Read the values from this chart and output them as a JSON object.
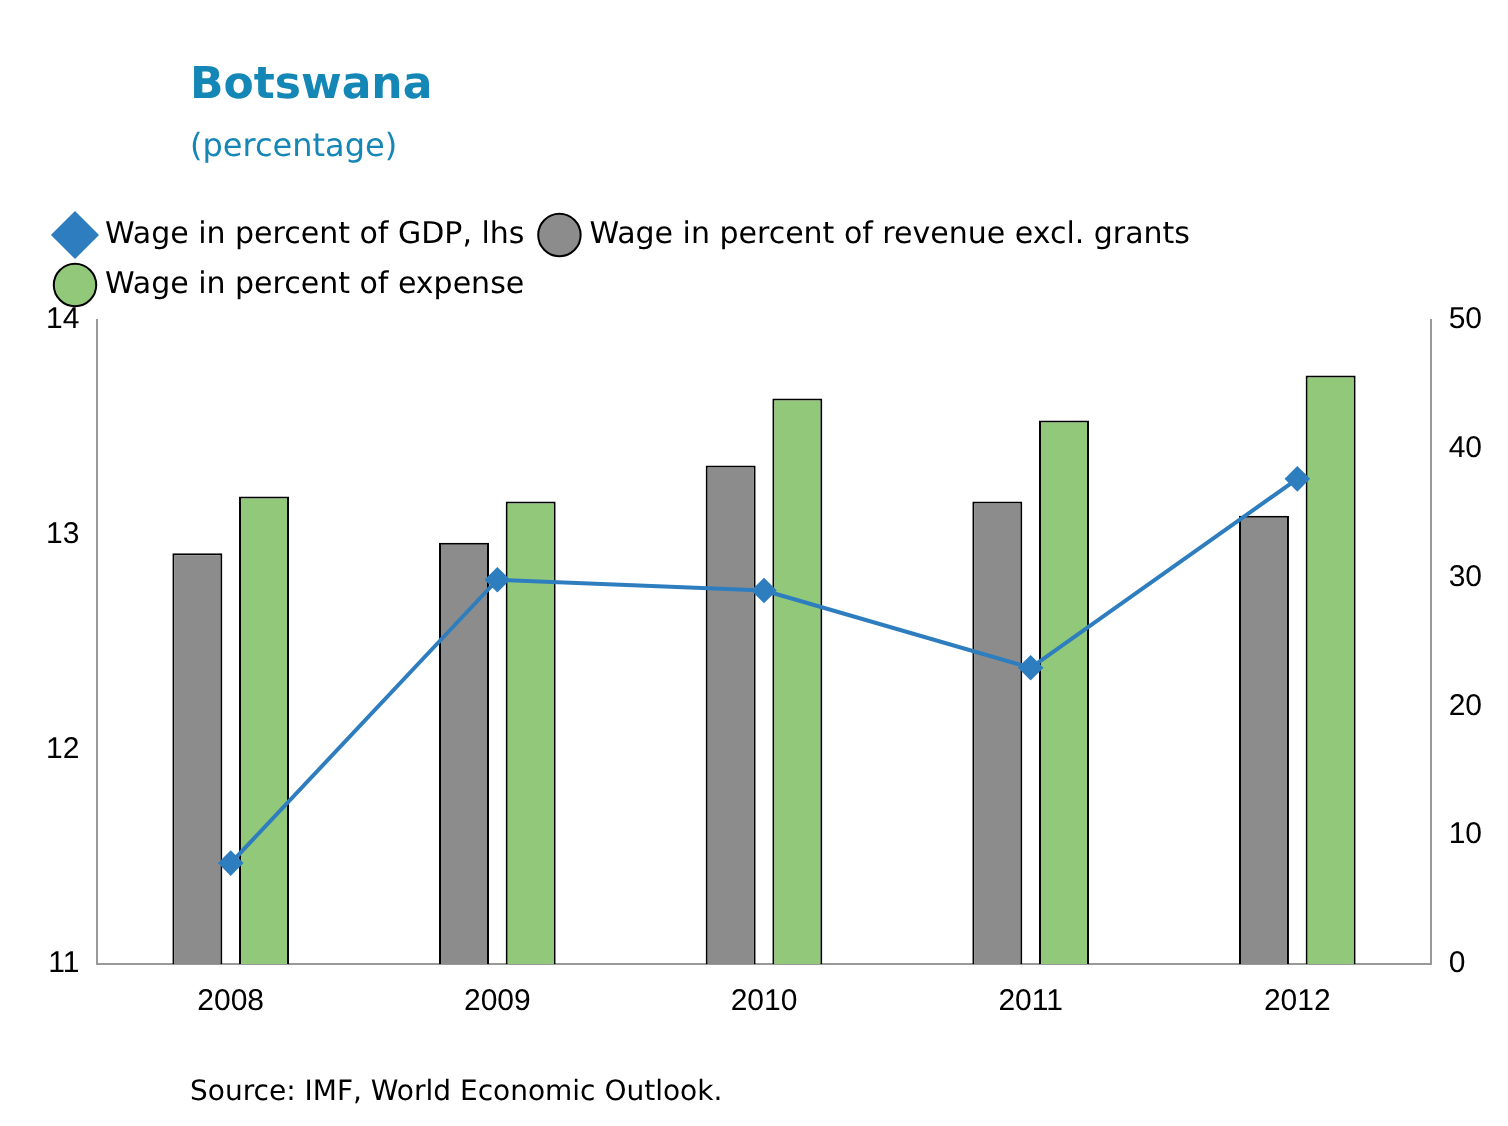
{
  "chart_data": {
    "type": "bar",
    "title": "Botswana",
    "subtitle": "(percentage)",
    "categories": [
      "2008",
      "2009",
      "2010",
      "2011",
      "2012"
    ],
    "series": [
      {
        "name": "Wage in percent of revenue excl. grants",
        "color": "#8c8c8c",
        "axis": "y2",
        "values": [
          31.9,
          32.7,
          38.7,
          35.9,
          34.8
        ]
      },
      {
        "name": "Wage in percent of expense",
        "color": "#92c87a",
        "axis": "y2",
        "values": [
          36.3,
          35.9,
          43.9,
          42.2,
          45.7
        ]
      },
      {
        "name": "Wage in percent of GDP, lhs",
        "type": "line",
        "color": "#2e7ebf",
        "values": [
          11.47,
          12.79,
          12.74,
          12.38,
          13.26
        ]
      }
    ],
    "ylim": [
      11,
      14
    ],
    "yticks": [
      11,
      12,
      13,
      14
    ],
    "y2lim": [
      0,
      50
    ],
    "y2ticks": [
      0,
      10,
      20,
      30,
      40,
      50
    ],
    "grid": false,
    "legend": "top left",
    "marker": "diamond",
    "annotations": [
      "Source: IMF, World Economic Outlook."
    ]
  }
}
